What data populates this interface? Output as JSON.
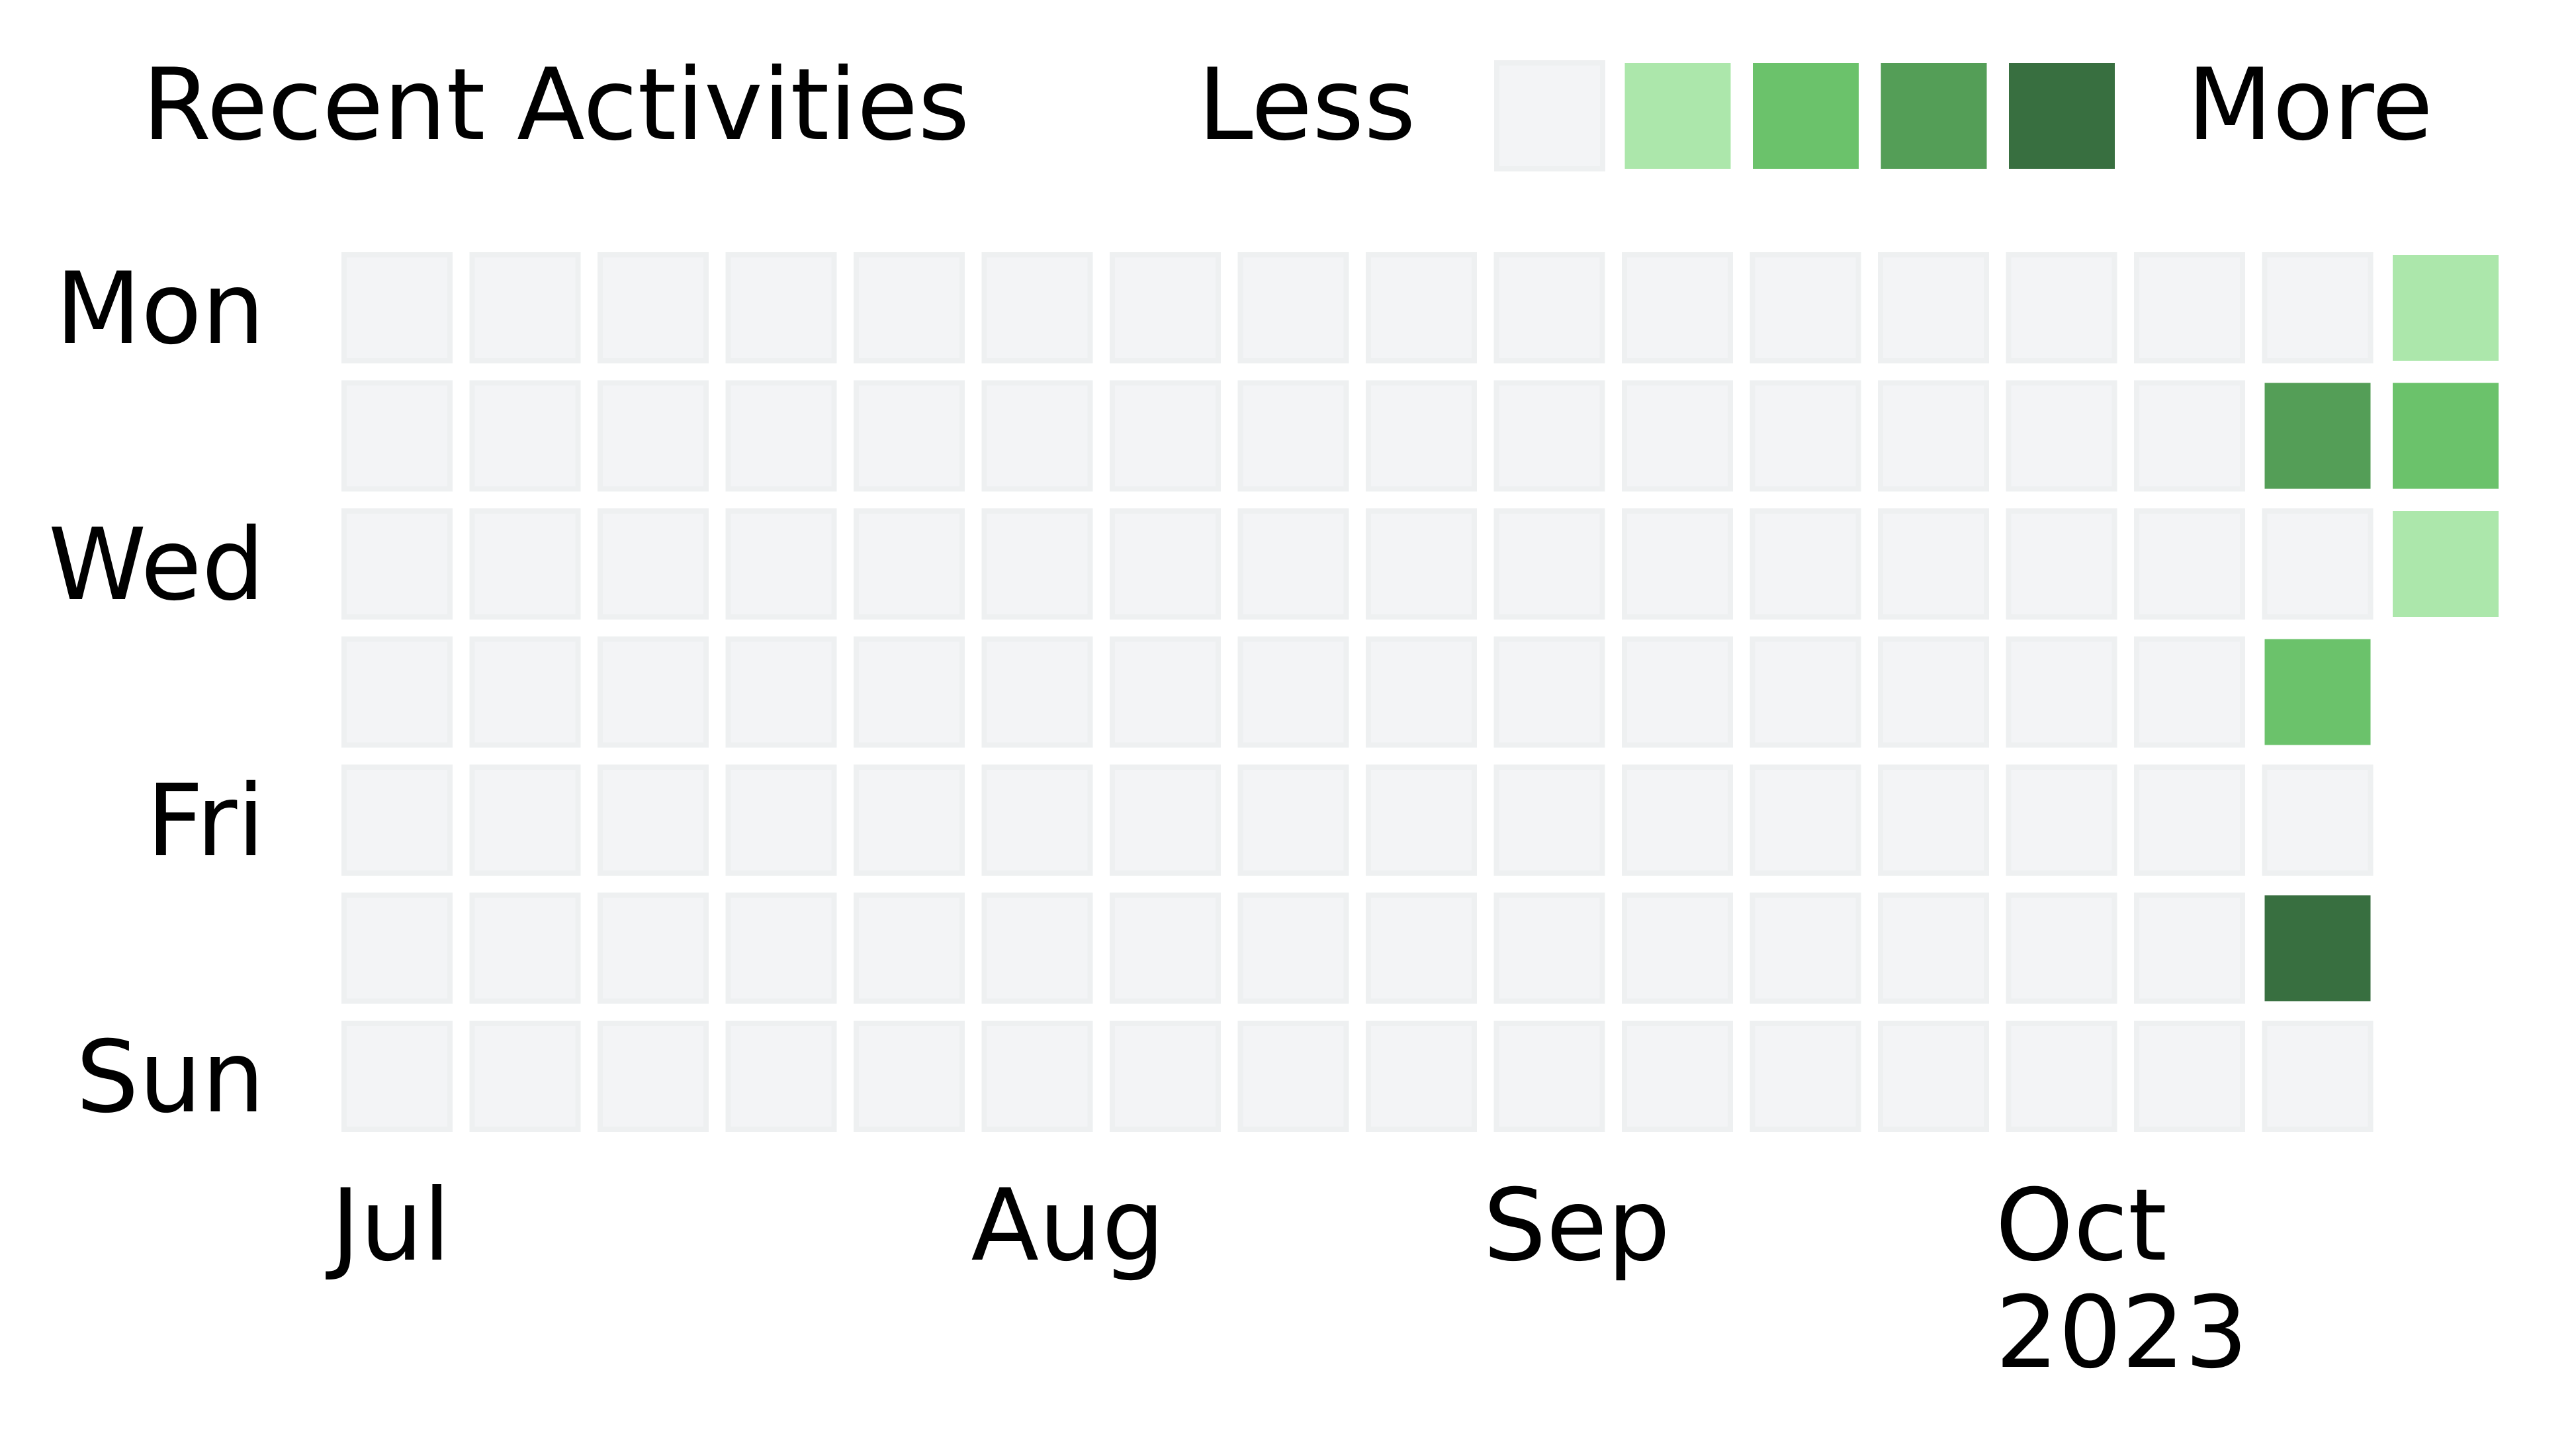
{
  "header": {
    "title": "Recent Activities",
    "legend_less": "Less",
    "legend_more": "More"
  },
  "legend_levels": [
    {
      "level": 0,
      "color": "#f3f4f6"
    },
    {
      "level": 1,
      "color": "#ace7ab"
    },
    {
      "level": 2,
      "color": "#6bc26b"
    },
    {
      "level": 3,
      "color": "#549e57"
    },
    {
      "level": 4,
      "color": "#386f40"
    }
  ],
  "chart_data": {
    "type": "heatmap",
    "title": "Recent Activities",
    "day_labels": [
      {
        "row": 0,
        "label": "Mon"
      },
      {
        "row": 2,
        "label": "Wed"
      },
      {
        "row": 4,
        "label": "Fri"
      },
      {
        "row": 6,
        "label": "Sun"
      }
    ],
    "month_labels": [
      {
        "week": 0,
        "label": "Jul"
      },
      {
        "week": 5,
        "label": "Aug"
      },
      {
        "week": 9,
        "label": "Sep"
      },
      {
        "week": 13,
        "label": "Oct",
        "sublabel": "2023"
      }
    ],
    "weeks": [
      [
        0,
        0,
        0,
        0,
        0,
        0,
        0
      ],
      [
        0,
        0,
        0,
        0,
        0,
        0,
        0
      ],
      [
        0,
        0,
        0,
        0,
        0,
        0,
        0
      ],
      [
        0,
        0,
        0,
        0,
        0,
        0,
        0
      ],
      [
        0,
        0,
        0,
        0,
        0,
        0,
        0
      ],
      [
        0,
        0,
        0,
        0,
        0,
        0,
        0
      ],
      [
        0,
        0,
        0,
        0,
        0,
        0,
        0
      ],
      [
        0,
        0,
        0,
        0,
        0,
        0,
        0
      ],
      [
        0,
        0,
        0,
        0,
        0,
        0,
        0
      ],
      [
        0,
        0,
        0,
        0,
        0,
        0,
        0
      ],
      [
        0,
        0,
        0,
        0,
        0,
        0,
        0
      ],
      [
        0,
        0,
        0,
        0,
        0,
        0,
        0
      ],
      [
        0,
        0,
        0,
        0,
        0,
        0,
        0
      ],
      [
        0,
        0,
        0,
        0,
        0,
        0,
        0
      ],
      [
        0,
        0,
        0,
        0,
        0,
        0,
        0
      ],
      [
        0,
        3,
        0,
        2,
        0,
        4,
        0
      ],
      [
        1,
        2,
        1
      ]
    ]
  }
}
